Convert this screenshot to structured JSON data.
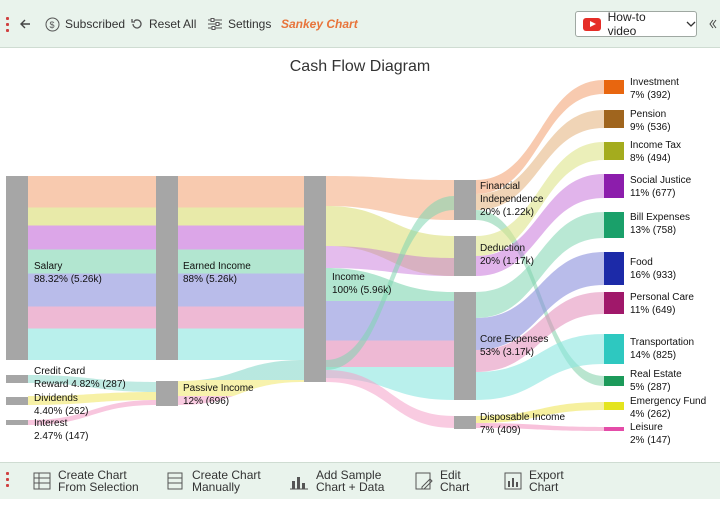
{
  "toolbar": {
    "back_label": "",
    "subscribed_label": "Subscribed",
    "reset_label": "Reset All",
    "settings_label": "Settings",
    "chart_name": "Sankey Chart",
    "video_label": "How-to video"
  },
  "chart_title": "Cash Flow Diagram",
  "bottom": {
    "create_selection": [
      "Create Chart",
      "From Selection"
    ],
    "create_manual": [
      "Create Chart",
      "Manually"
    ],
    "add_sample": [
      "Add Sample",
      "Chart + Data"
    ],
    "edit_chart": [
      "Edit",
      "Chart"
    ],
    "export_chart": [
      "Export",
      "Chart"
    ]
  },
  "colors": {
    "toolbar_bg": "#e9f3ec",
    "accent_orange": "#e8743b",
    "node_gray": "#a6a6a6"
  },
  "chart_data": {
    "type": "sankey",
    "title": "Cash Flow Diagram",
    "nodes": [
      {
        "id": "salary",
        "label": [
          "Salary",
          "88.32% (5.26k)"
        ],
        "value": 5.26
      },
      {
        "id": "credit",
        "label": [
          "Credit Card",
          "Reward 4.82% (287)"
        ],
        "value": 0.287
      },
      {
        "id": "dividends",
        "label": [
          "Dividends",
          "4.40% (262)"
        ],
        "value": 0.262
      },
      {
        "id": "interest",
        "label": [
          "Interest",
          "2.47% (147)"
        ],
        "value": 0.147
      },
      {
        "id": "earned",
        "label": [
          "Earned Income",
          "88% (5.26k)"
        ],
        "value": 5.26
      },
      {
        "id": "passive",
        "label": [
          "Passive Income",
          "12% (696)"
        ],
        "value": 0.696
      },
      {
        "id": "income",
        "label": [
          "Income",
          "100% (5.96k)"
        ],
        "value": 5.96
      },
      {
        "id": "fin_ind",
        "label": [
          "Financial",
          "Independence",
          "20% (1.22k)"
        ],
        "value": 1.22
      },
      {
        "id": "deduction",
        "label": [
          "Deduction",
          "20% (1.17k)"
        ],
        "value": 1.17
      },
      {
        "id": "core",
        "label": [
          "Core Expenses",
          "53% (3.17k)"
        ],
        "value": 3.17
      },
      {
        "id": "disposable",
        "label": [
          "Disposable Income",
          "7% (409)"
        ],
        "value": 0.409
      },
      {
        "id": "investment",
        "label": [
          "Investment",
          "7% (392)"
        ],
        "value": 0.392,
        "color": "#e8660f"
      },
      {
        "id": "pension",
        "label": [
          "Pension",
          "9% (536)"
        ],
        "value": 0.536,
        "color": "#a0651e"
      },
      {
        "id": "income_tax",
        "label": [
          "Income Tax",
          "8% (494)"
        ],
        "value": 0.494,
        "color": "#a4ac1e"
      },
      {
        "id": "social",
        "label": [
          "Social Justice",
          "11% (677)"
        ],
        "value": 0.677,
        "color": "#8c1dac"
      },
      {
        "id": "bills",
        "label": [
          "Bill Expenses",
          "13% (758)"
        ],
        "value": 0.758,
        "color": "#1aa06a"
      },
      {
        "id": "food",
        "label": [
          "Food",
          "16% (933)"
        ],
        "value": 0.933,
        "color": "#1c2aa8"
      },
      {
        "id": "personal",
        "label": [
          "Personal Care",
          "11% (649)"
        ],
        "value": 0.649,
        "color": "#a0186a"
      },
      {
        "id": "transport",
        "label": [
          "Transportation",
          "14% (825)"
        ],
        "value": 0.825,
        "color": "#2ec8c0"
      },
      {
        "id": "real_estate",
        "label": [
          "Real Estate",
          "5% (287)"
        ],
        "value": 0.287,
        "color": "#1c9a5a"
      },
      {
        "id": "emergency",
        "label": [
          "Emergency Fund",
          "4% (262)"
        ],
        "value": 0.262,
        "color": "#e4e41e"
      },
      {
        "id": "leisure",
        "label": [
          "Leisure",
          "2% (147)"
        ],
        "value": 0.147,
        "color": "#e44ca8"
      }
    ]
  }
}
